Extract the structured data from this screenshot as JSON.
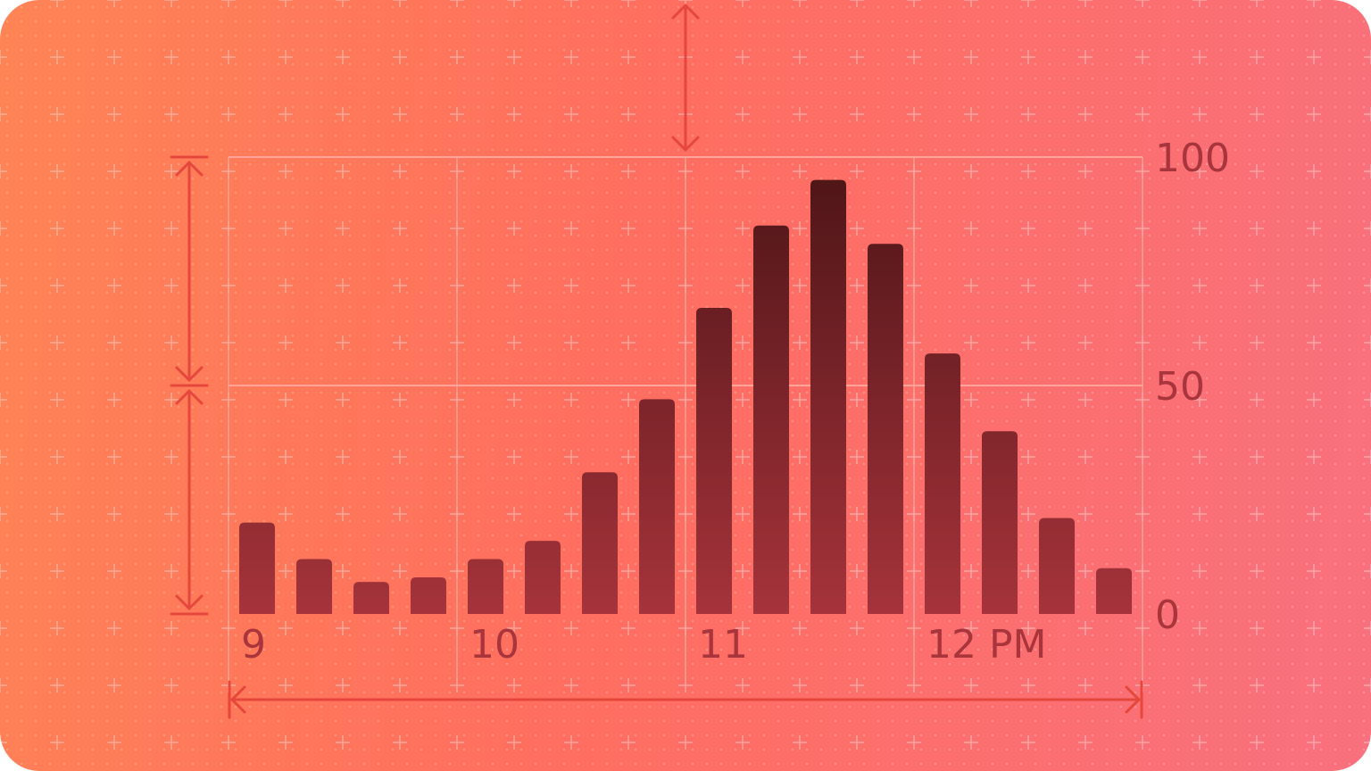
{
  "colors": {
    "background_start": "#ff8455",
    "background_end": "#f9707e",
    "bar_top": "#4b1416",
    "bar_bottom": "#a6333b",
    "tick_label": "#a8343c",
    "dimension_line": "#e5473c",
    "grid_line": "#ffa49a"
  },
  "chart_data": {
    "type": "bar",
    "categories": [
      "9:00",
      "9:15",
      "9:30",
      "9:45",
      "10:00",
      "10:15",
      "10:30",
      "10:45",
      "11:00",
      "11:15",
      "11:30",
      "11:45",
      "12:00",
      "12:15",
      "12:30",
      "12:45"
    ],
    "values": [
      20,
      12,
      7,
      8,
      12,
      16,
      31,
      47,
      67,
      85,
      95,
      81,
      57,
      40,
      21,
      10
    ],
    "x_tick_labels": [
      "9",
      "10",
      "11",
      "12 PM"
    ],
    "y_tick_labels": [
      "0",
      "50",
      "100"
    ],
    "y_ticks": [
      0,
      50,
      100
    ],
    "ylim": [
      0,
      100
    ],
    "grid": true,
    "title": "",
    "xlabel": "",
    "ylabel": ""
  }
}
